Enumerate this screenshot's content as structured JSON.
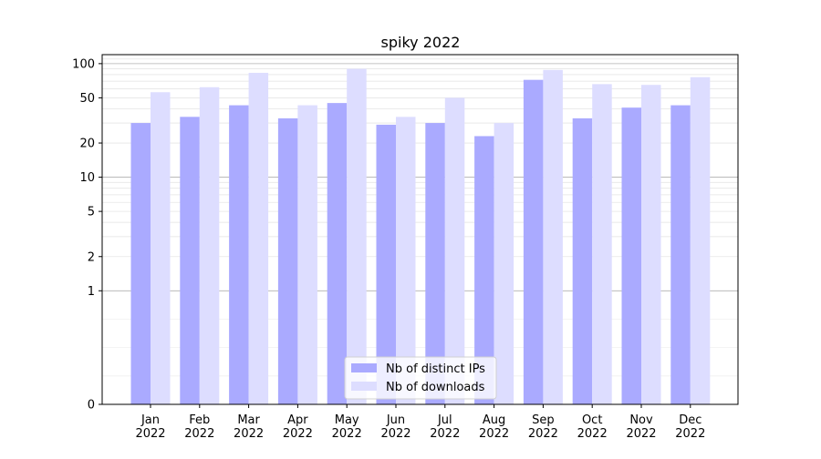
{
  "chart_data": {
    "type": "bar",
    "title": "spiky 2022",
    "xlabel": "",
    "ylabel": "",
    "yscale": "symlog",
    "ylim": [
      0,
      120
    ],
    "categories": [
      "Jan\n2022",
      "Feb\n2022",
      "Mar\n2022",
      "Apr\n2022",
      "May\n2022",
      "Jun\n2022",
      "Jul\n2022",
      "Aug\n2022",
      "Sep\n2022",
      "Oct\n2022",
      "Nov\n2022",
      "Dec\n2022"
    ],
    "y_ticks": [
      0,
      1,
      2,
      5,
      10,
      20,
      50,
      100
    ],
    "series": [
      {
        "name": "Nb of distinct IPs",
        "color": "#aaaaff",
        "values": [
          30,
          34,
          43,
          33,
          45,
          29,
          30,
          23,
          72,
          33,
          41,
          43
        ]
      },
      {
        "name": "Nb of downloads",
        "color": "#ddddff",
        "values": [
          56,
          62,
          83,
          43,
          90,
          34,
          50,
          30,
          88,
          66,
          65,
          76
        ]
      }
    ],
    "grid": "y-major-and-minor",
    "legend_position": "bottom-center"
  }
}
